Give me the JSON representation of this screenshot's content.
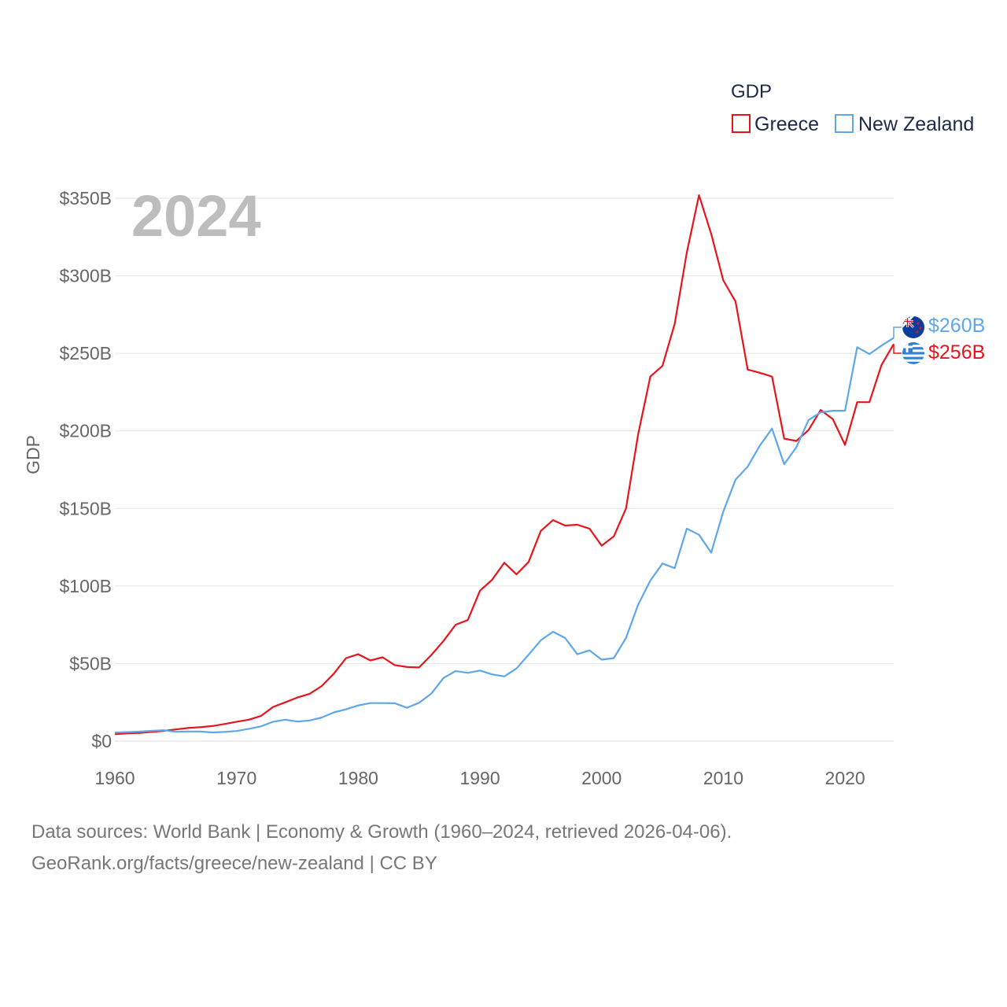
{
  "legend": {
    "title": "GDP",
    "items": [
      {
        "label": "Greece",
        "color": "#e8141c"
      },
      {
        "label": "New Zealand",
        "color": "#5ea7e8"
      }
    ]
  },
  "year_label": "2024",
  "y_axis_title": "GDP",
  "end_labels": {
    "nz": "$260B",
    "greece": "$256B"
  },
  "sources": {
    "line1": "Data sources: World Bank | Economy & Growth (1960–2024, retrieved 2026-04-06).",
    "line2": "GeoRank.org/facts/greece/new-zealand | CC BY"
  },
  "chart_data": {
    "type": "line",
    "title": "GDP",
    "xlabel": "",
    "ylabel": "GDP",
    "x": [
      1960,
      1961,
      1962,
      1963,
      1964,
      1965,
      1966,
      1967,
      1968,
      1969,
      1970,
      1971,
      1972,
      1973,
      1974,
      1975,
      1976,
      1977,
      1978,
      1979,
      1980,
      1981,
      1982,
      1983,
      1984,
      1985,
      1986,
      1987,
      1988,
      1989,
      1990,
      1991,
      1992,
      1993,
      1994,
      1995,
      1996,
      1997,
      1998,
      1999,
      2000,
      2001,
      2002,
      2003,
      2004,
      2005,
      2006,
      2007,
      2008,
      2009,
      2010,
      2011,
      2012,
      2013,
      2014,
      2015,
      2016,
      2017,
      2018,
      2019,
      2020,
      2021,
      2022,
      2023,
      2024
    ],
    "xlim": [
      1960,
      2024
    ],
    "ylim": [
      0,
      350
    ],
    "y_unit": "billion USD",
    "x_ticks": [
      1960,
      1970,
      1980,
      1990,
      2000,
      2010,
      2020
    ],
    "x_tick_labels": [
      "1960",
      "1970",
      "1980",
      "1990",
      "2000",
      "2010",
      "2020"
    ],
    "y_ticks": [
      0,
      50,
      100,
      150,
      200,
      250,
      300,
      350
    ],
    "y_tick_labels": [
      "$0",
      "$50B",
      "$100B",
      "$150B",
      "$200B",
      "$250B",
      "$300B",
      "$350B"
    ],
    "grid": true,
    "legend_position": "top-right",
    "series": [
      {
        "name": "Greece",
        "color": "#e8141c",
        "values": [
          4.4,
          5.0,
          5.3,
          5.9,
          6.6,
          7.5,
          8.4,
          9.0,
          9.7,
          11.0,
          12.5,
          13.8,
          16.2,
          22.0,
          25.0,
          28.1,
          30.5,
          35.5,
          43.5,
          53.5,
          56.0,
          52.0,
          54.0,
          49.0,
          47.8,
          47.5,
          55.5,
          64.5,
          75.0,
          78.0,
          97.0,
          104.0,
          115.0,
          107.5,
          115.5,
          135.5,
          142.5,
          139.0,
          139.5,
          137.0,
          126.0,
          132.0,
          150.0,
          198.0,
          235.0,
          242.0,
          269.0,
          315.0,
          352.0,
          327.0,
          297.0,
          283.5,
          239.5,
          237.5,
          235.0,
          195.0,
          193.5,
          200.5,
          213.5,
          207.5,
          191.0,
          218.5,
          218.5,
          242.5,
          256.0
        ]
      },
      {
        "name": "New Zealand",
        "color": "#5ea7e8",
        "values": [
          5.5,
          5.8,
          6.1,
          6.6,
          7.0,
          6.0,
          6.2,
          6.2,
          5.6,
          5.9,
          6.5,
          7.9,
          9.5,
          12.5,
          13.8,
          12.6,
          13.3,
          15.2,
          18.5,
          20.5,
          23.0,
          24.5,
          24.5,
          24.4,
          21.5,
          24.7,
          30.6,
          40.7,
          45.2,
          44.0,
          45.5,
          43.0,
          41.7,
          46.8,
          55.7,
          65.0,
          70.5,
          66.5,
          56.0,
          58.5,
          52.5,
          53.5,
          66.5,
          88.0,
          103.5,
          114.5,
          111.5,
          137.0,
          133.0,
          121.5,
          148.0,
          168.5,
          177.0,
          190.5,
          201.5,
          178.5,
          189.5,
          207.0,
          212.0,
          213.0,
          213.0,
          254.0,
          249.5,
          255.0,
          260.0
        ]
      }
    ]
  }
}
